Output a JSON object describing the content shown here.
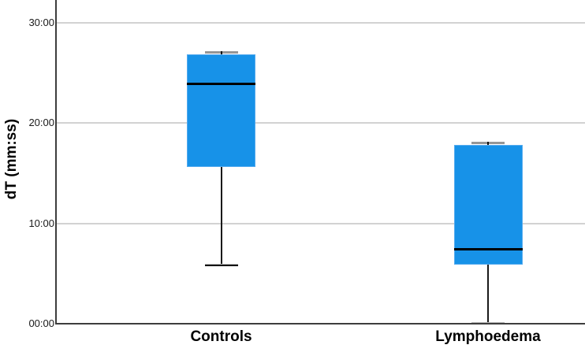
{
  "chart_data": {
    "type": "boxplot",
    "title": "",
    "xlabel": "",
    "ylabel": "dT (mm:ss)",
    "categories": [
      "Controls",
      "Lymphoedema"
    ],
    "y_ticks": [
      "00:00",
      "10:00",
      "20:00",
      "30:00"
    ],
    "y_axis_visible_range": [
      "00:00",
      "32:20"
    ],
    "grid": "horizontal light-gray gridlines at each labeled y tick, extending to right edge; no top or right border",
    "legend": "none",
    "series": [
      {
        "category": "Controls",
        "whisker_min": "05:50",
        "q1": "15:40",
        "median": "23:55",
        "q3": "26:50",
        "whisker_max": "27:00"
      },
      {
        "category": "Lymphoedema",
        "whisker_min": "00:00",
        "q1": "05:55",
        "median": "07:25",
        "q3": "17:50",
        "whisker_max": "18:00"
      }
    ],
    "colors": {
      "box_fill": "#1792e8",
      "box_border": "#55abef",
      "median": "#000000",
      "whisker": "#1a1a1a",
      "upper_cap_gray": "#969696",
      "gridline": "#d2d2d2",
      "axis": "#3d3d3d",
      "text": "#000000"
    }
  }
}
